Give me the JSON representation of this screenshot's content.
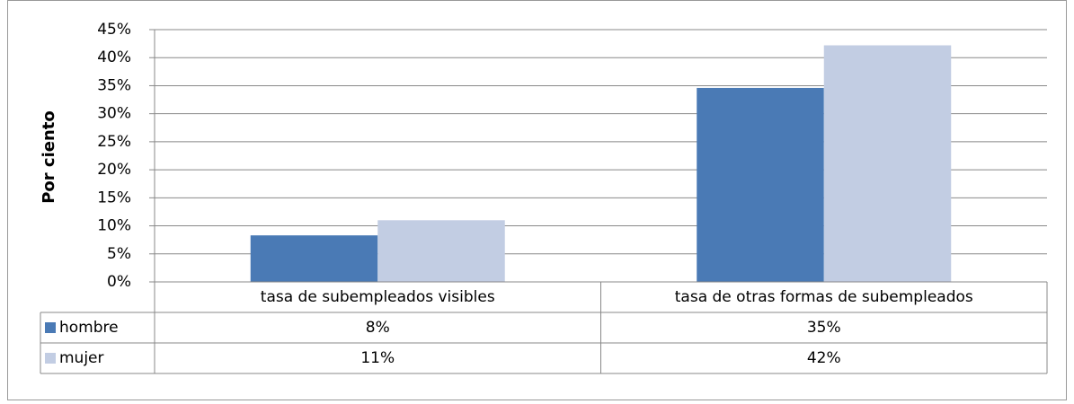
{
  "chart_data": {
    "type": "bar",
    "y_label": "Por ciento",
    "categories": [
      "tasa de subempleados visibles",
      "tasa de otras formas de subempleados"
    ],
    "series": [
      {
        "name": "hombre",
        "color": "#4a7ab5",
        "values": [
          8.3,
          34.6
        ],
        "value_labels": [
          "8%",
          "35%"
        ]
      },
      {
        "name": "mujer",
        "color": "#c2cde3",
        "values": [
          11.0,
          42.2
        ],
        "value_labels": [
          "11%",
          "42%"
        ]
      }
    ],
    "ylim": [
      0,
      45
    ],
    "yticks": [
      {
        "value": 0,
        "label": "0%"
      },
      {
        "value": 5,
        "label": "5%"
      },
      {
        "value": 10,
        "label": "10%"
      },
      {
        "value": 15,
        "label": "15%"
      },
      {
        "value": 20,
        "label": "20%"
      },
      {
        "value": 25,
        "label": "25%"
      },
      {
        "value": 30,
        "label": "30%"
      },
      {
        "value": 35,
        "label": "35%"
      },
      {
        "value": 40,
        "label": "40%"
      },
      {
        "value": 45,
        "label": "45%"
      }
    ],
    "grid": true
  }
}
